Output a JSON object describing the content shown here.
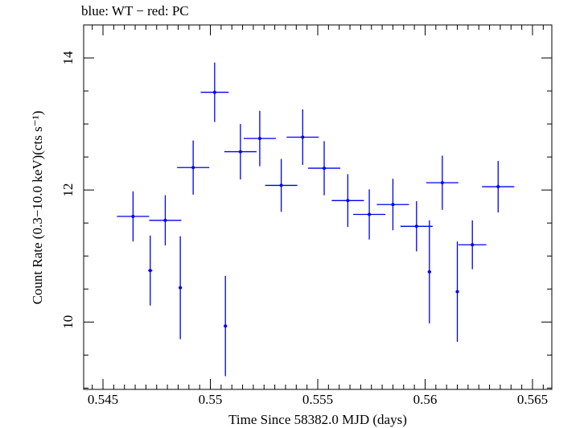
{
  "chart_data": {
    "type": "scatter",
    "title": "blue: WT − red: PC",
    "xlabel": "Time Since 58382.0 MJD (days)",
    "ylabel": "Count Rate (0.3−10.0 keV)(cts s⁻¹)",
    "xlim": [
      0.5441,
      0.5659
    ],
    "ylim": [
      8.98,
      14.5
    ],
    "x_ticks": [
      0.545,
      0.55,
      0.555,
      0.56,
      0.565
    ],
    "x_tick_labels": [
      "0.545",
      "0.55",
      "0.555",
      "0.56",
      "0.565"
    ],
    "y_ticks": [
      10,
      12,
      14
    ],
    "y_tick_labels": [
      "10",
      "12",
      "14"
    ],
    "grid": false,
    "legend": "none",
    "series": [
      {
        "name": "WT",
        "color": "#0000ee",
        "points": [
          {
            "x": 0.5464,
            "xerr": 0.00075,
            "y": 11.6,
            "yerr": 0.38
          },
          {
            "x": 0.5472,
            "xerr": 0.0001,
            "y": 10.78,
            "yerr": 0.53
          },
          {
            "x": 0.5479,
            "xerr": 0.00075,
            "y": 11.54,
            "yerr": 0.38
          },
          {
            "x": 0.5486,
            "xerr": 8e-05,
            "y": 10.52,
            "yerr": 0.78
          },
          {
            "x": 0.5492,
            "xerr": 0.00075,
            "y": 12.34,
            "yerr": 0.41
          },
          {
            "x": 0.5502,
            "xerr": 0.00065,
            "y": 13.48,
            "yerr": 0.45
          },
          {
            "x": 0.5507,
            "xerr": 8e-05,
            "y": 9.94,
            "yerr": 0.76
          },
          {
            "x": 0.5514,
            "xerr": 0.00075,
            "y": 12.58,
            "yerr": 0.42
          },
          {
            "x": 0.5523,
            "xerr": 0.00075,
            "y": 12.78,
            "yerr": 0.42
          },
          {
            "x": 0.5533,
            "xerr": 0.00075,
            "y": 12.07,
            "yerr": 0.4
          },
          {
            "x": 0.5543,
            "xerr": 0.00075,
            "y": 12.8,
            "yerr": 0.42
          },
          {
            "x": 0.5553,
            "xerr": 0.00075,
            "y": 12.33,
            "yerr": 0.41
          },
          {
            "x": 0.5564,
            "xerr": 0.00075,
            "y": 11.84,
            "yerr": 0.4
          },
          {
            "x": 0.5574,
            "xerr": 0.00075,
            "y": 11.63,
            "yerr": 0.38
          },
          {
            "x": 0.5585,
            "xerr": 0.00075,
            "y": 11.78,
            "yerr": 0.39
          },
          {
            "x": 0.5596,
            "xerr": 0.00075,
            "y": 11.45,
            "yerr": 0.38
          },
          {
            "x": 0.5602,
            "xerr": 8e-05,
            "y": 10.76,
            "yerr": 0.78
          },
          {
            "x": 0.5608,
            "xerr": 0.00075,
            "y": 12.11,
            "yerr": 0.41
          },
          {
            "x": 0.5615,
            "xerr": 8e-05,
            "y": 10.46,
            "yerr": 0.76
          },
          {
            "x": 0.5622,
            "xerr": 0.00065,
            "y": 11.17,
            "yerr": 0.37
          },
          {
            "x": 0.5634,
            "xerr": 0.00075,
            "y": 12.05,
            "yerr": 0.39
          }
        ]
      }
    ]
  }
}
